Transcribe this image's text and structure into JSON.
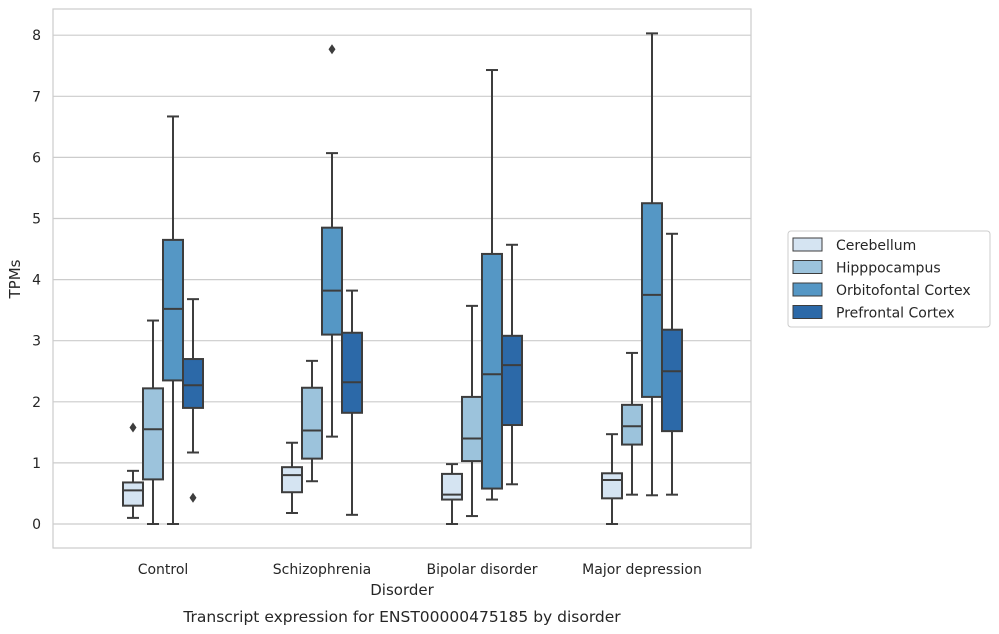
{
  "chart_data": {
    "type": "box",
    "title": "",
    "caption": "Transcript expression for ENST00000475185 by disorder",
    "xlabel": "Disorder",
    "ylabel": "TPMs",
    "ylim": [
      -0.4,
      8.4
    ],
    "yticks": [
      "0",
      "1",
      "2",
      "3",
      "4",
      "5",
      "6",
      "7",
      "8"
    ],
    "grid": "horizontal",
    "legend_position": "right",
    "categories": [
      "Control",
      "Schizophrenia",
      "Bipolar disorder",
      "Major depression"
    ],
    "series": [
      {
        "name": "Cerebellum",
        "color": "#d5e4f2",
        "boxes": [
          {
            "whisker_low": 0.1,
            "q1": 0.3,
            "median": 0.55,
            "q3": 0.68,
            "whisker_high": 0.87,
            "outliers": [
              1.58
            ]
          },
          {
            "whisker_low": 0.18,
            "q1": 0.52,
            "median": 0.8,
            "q3": 0.93,
            "whisker_high": 1.33,
            "outliers": []
          },
          {
            "whisker_low": 0.0,
            "q1": 0.4,
            "median": 0.48,
            "q3": 0.82,
            "whisker_high": 0.98,
            "outliers": []
          },
          {
            "whisker_low": 0.0,
            "q1": 0.42,
            "median": 0.72,
            "q3": 0.83,
            "whisker_high": 1.47,
            "outliers": []
          }
        ]
      },
      {
        "name": "Hipppocampus",
        "color": "#9cc3dc",
        "boxes": [
          {
            "whisker_low": 0.0,
            "q1": 0.73,
            "median": 1.55,
            "q3": 2.22,
            "whisker_high": 3.33,
            "outliers": []
          },
          {
            "whisker_low": 0.7,
            "q1": 1.07,
            "median": 1.53,
            "q3": 2.23,
            "whisker_high": 2.67,
            "outliers": []
          },
          {
            "whisker_low": 0.13,
            "q1": 1.03,
            "median": 1.4,
            "q3": 2.08,
            "whisker_high": 3.57,
            "outliers": []
          },
          {
            "whisker_low": 0.48,
            "q1": 1.3,
            "median": 1.6,
            "q3": 1.95,
            "whisker_high": 2.8,
            "outliers": []
          }
        ]
      },
      {
        "name": "Orbitofontal Cortex",
        "color": "#5597c5",
        "boxes": [
          {
            "whisker_low": 0.0,
            "q1": 2.35,
            "median": 3.52,
            "q3": 4.65,
            "whisker_high": 6.67,
            "outliers": []
          },
          {
            "whisker_low": 1.43,
            "q1": 3.1,
            "median": 3.82,
            "q3": 4.85,
            "whisker_high": 6.07,
            "outliers": [
              7.77
            ]
          },
          {
            "whisker_low": 0.4,
            "q1": 0.58,
            "median": 2.45,
            "q3": 4.42,
            "whisker_high": 7.43,
            "outliers": []
          },
          {
            "whisker_low": 0.47,
            "q1": 2.08,
            "median": 3.75,
            "q3": 5.25,
            "whisker_high": 8.03,
            "outliers": []
          }
        ]
      },
      {
        "name": "Prefrontal Cortex",
        "color": "#2c69a8",
        "boxes": [
          {
            "whisker_low": 1.17,
            "q1": 1.9,
            "median": 2.27,
            "q3": 2.7,
            "whisker_high": 3.68,
            "outliers": [
              0.43
            ]
          },
          {
            "whisker_low": 0.15,
            "q1": 1.82,
            "median": 2.32,
            "q3": 3.13,
            "whisker_high": 3.82,
            "outliers": []
          },
          {
            "whisker_low": 0.65,
            "q1": 1.62,
            "median": 2.6,
            "q3": 3.08,
            "whisker_high": 4.57,
            "outliers": []
          },
          {
            "whisker_low": 0.48,
            "q1": 1.52,
            "median": 2.5,
            "q3": 3.18,
            "whisker_high": 4.75,
            "outliers": []
          }
        ]
      }
    ]
  }
}
